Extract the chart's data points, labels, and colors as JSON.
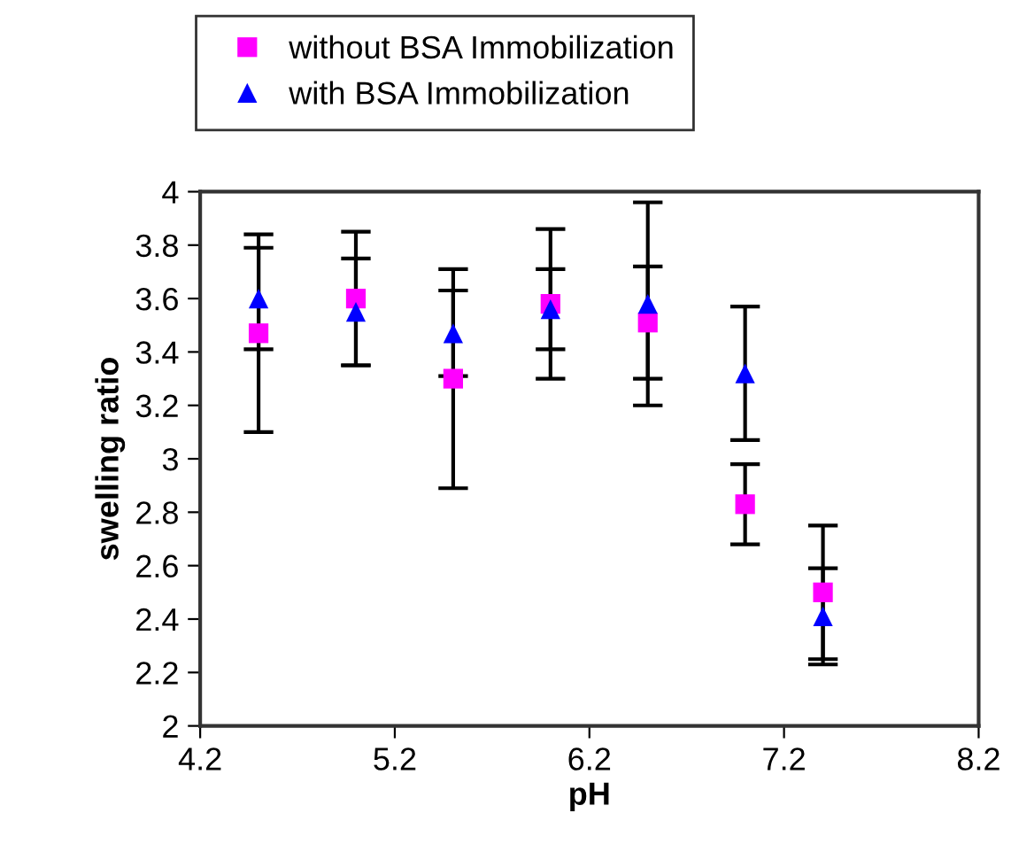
{
  "chart_data": {
    "type": "scatter",
    "xlabel": "pH",
    "ylabel": "swelling ratio",
    "x": [
      4.5,
      5.0,
      5.5,
      6.0,
      6.5,
      7.0,
      7.4
    ],
    "series": [
      {
        "name": "without BSA Immobilization",
        "color": "#ff00ff",
        "marker": "square",
        "values": [
          3.47,
          3.6,
          3.3,
          3.58,
          3.51,
          2.83,
          2.5
        ],
        "errors": [
          0.37,
          0.25,
          0.41,
          0.28,
          0.21,
          0.15,
          0.25
        ]
      },
      {
        "name": "with BSA Immobilization",
        "color": "#0000ff",
        "marker": "triangle",
        "values": [
          3.6,
          3.55,
          3.47,
          3.56,
          3.58,
          3.32,
          2.41
        ],
        "errors": [
          0.19,
          0.2,
          0.16,
          0.15,
          0.38,
          0.25,
          0.18
        ]
      }
    ],
    "xlim": [
      4.2,
      8.2
    ],
    "xticks": [
      4.2,
      5.2,
      6.2,
      7.2,
      8.2
    ],
    "ylim": [
      2,
      4
    ],
    "yticks": [
      2,
      2.2,
      2.4,
      2.6,
      2.8,
      3,
      3.2,
      3.4,
      3.6,
      3.8,
      4
    ],
    "grid": false,
    "legend": "top"
  }
}
